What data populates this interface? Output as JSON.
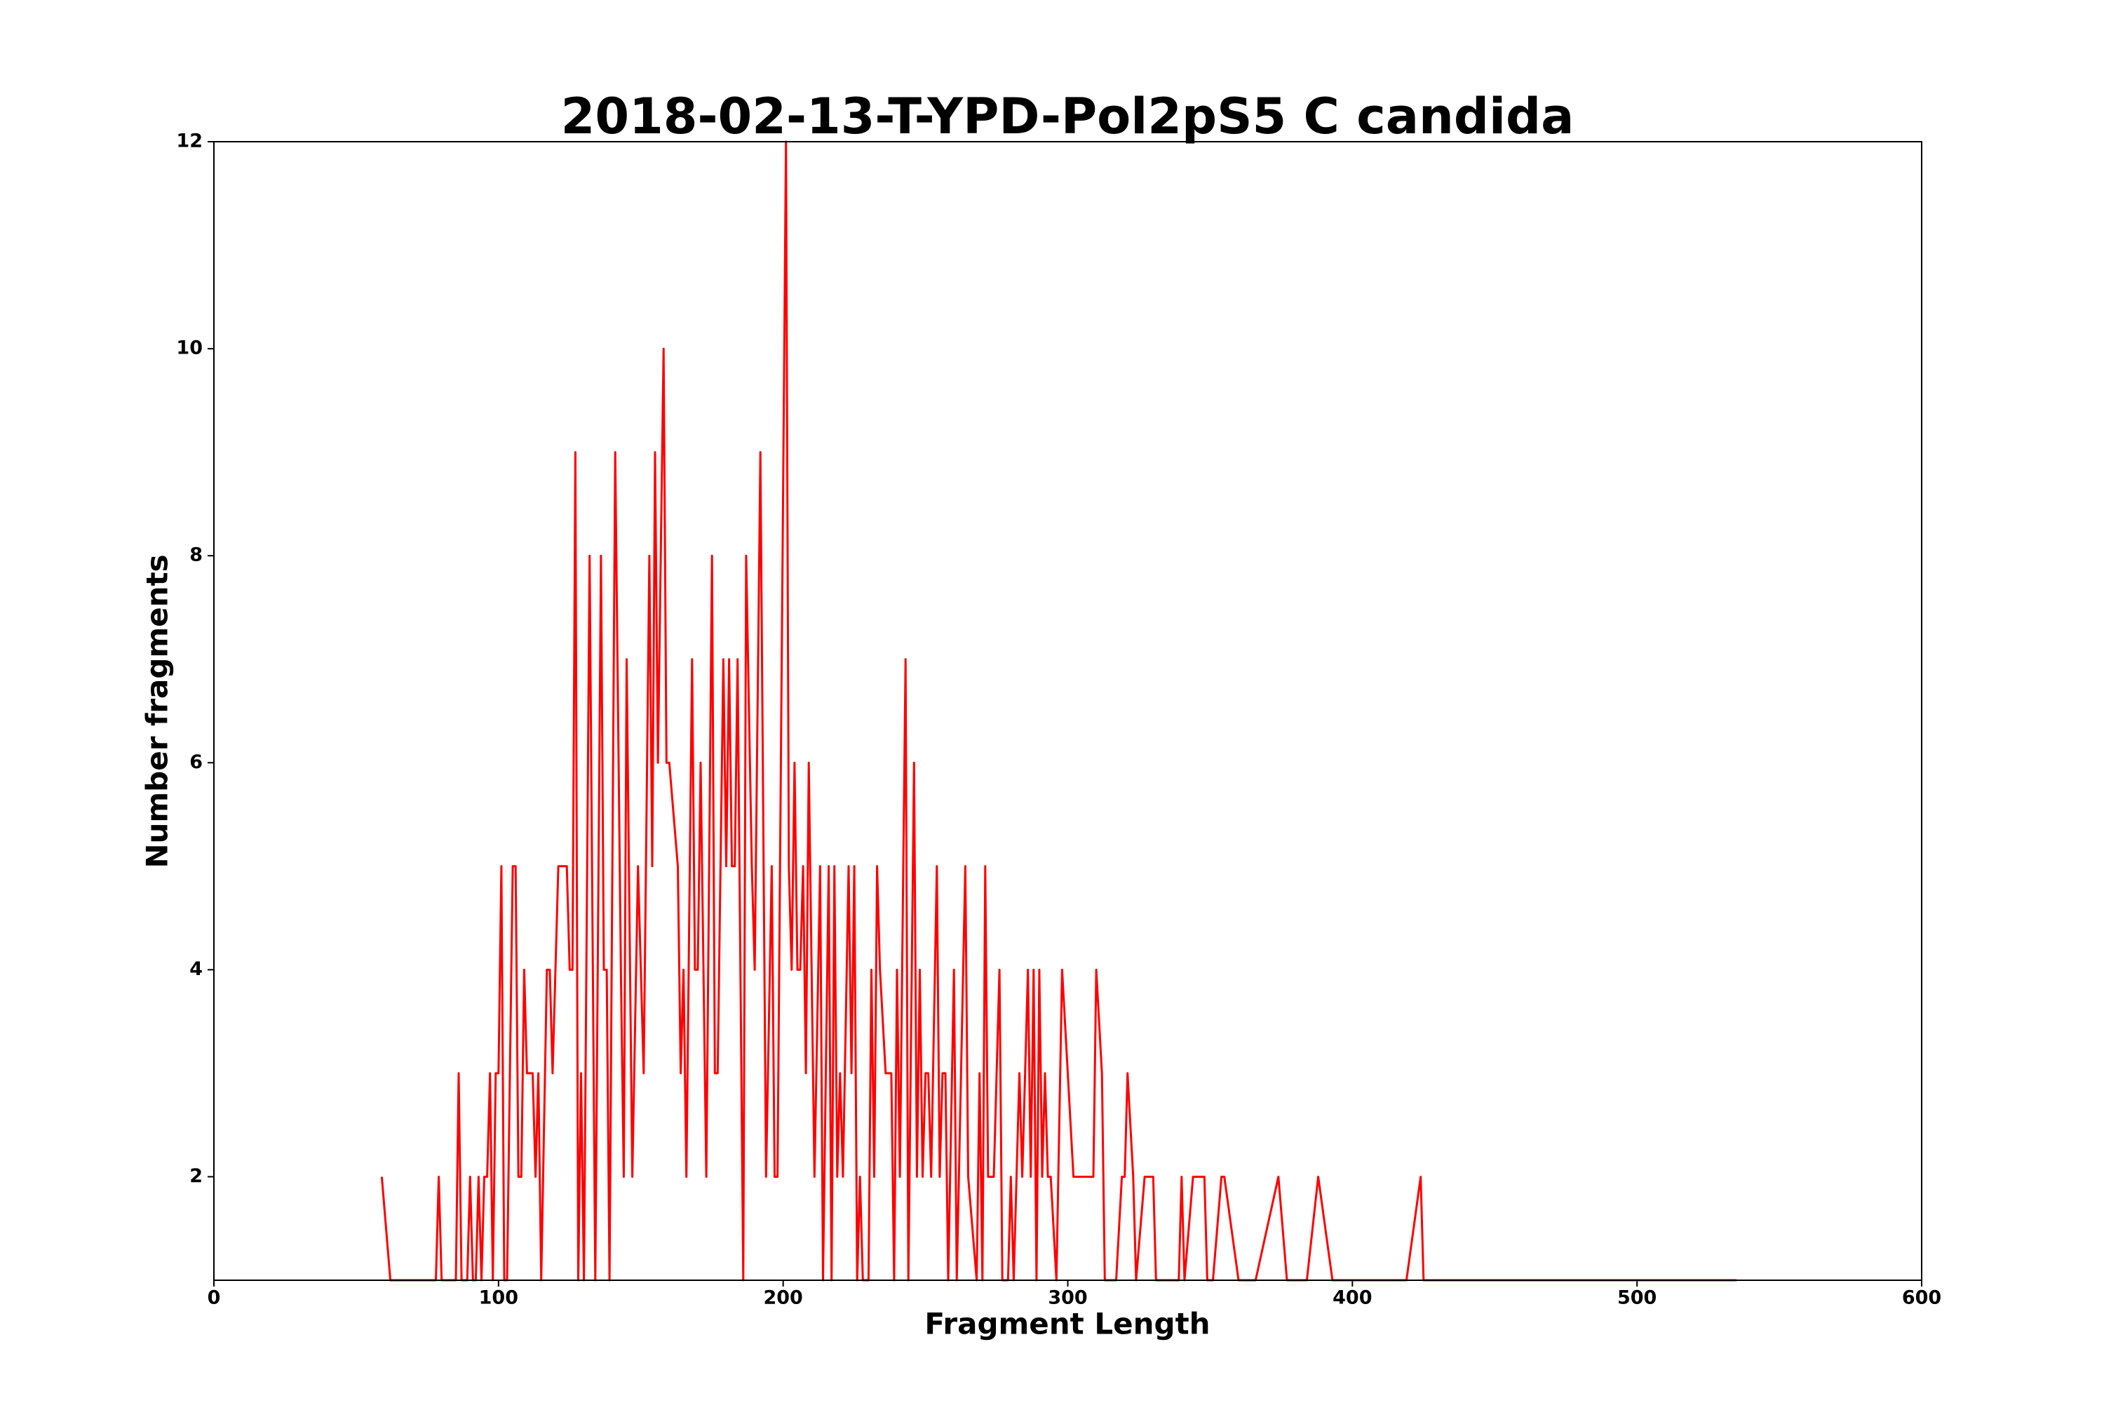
{
  "chart_data": {
    "type": "line",
    "title": "2018-02-13-T-YPD-Pol2pS5 C candida",
    "x_label": "Fragment Length",
    "y_label": "Number fragments",
    "x": [
      59,
      62,
      78,
      79,
      80,
      85,
      86,
      87,
      89,
      90,
      91,
      92,
      93,
      94,
      95,
      96,
      97,
      98,
      99,
      100,
      101,
      102,
      103,
      105,
      106,
      107,
      108,
      109,
      110,
      112,
      113,
      114,
      115,
      117,
      118,
      119,
      121,
      124,
      125,
      126,
      127,
      128,
      129,
      130,
      132,
      134,
      136,
      137,
      138,
      139,
      141,
      143,
      144,
      145,
      147,
      149,
      151,
      153,
      154,
      155,
      156,
      158,
      159,
      160,
      163,
      164,
      165,
      166,
      168,
      169,
      170,
      171,
      173,
      175,
      176,
      177,
      179,
      180,
      181,
      182,
      183,
      184,
      186,
      187,
      189,
      190,
      192,
      194,
      196,
      197,
      198,
      201,
      202,
      203,
      204,
      205,
      206,
      207,
      208,
      209,
      211,
      213,
      214,
      215,
      216,
      217,
      218,
      219,
      220,
      221,
      223,
      224,
      225,
      226,
      227,
      228,
      230,
      231,
      232,
      233,
      234,
      236,
      238,
      239,
      240,
      241,
      243,
      244,
      246,
      247,
      248,
      249,
      250,
      251,
      252,
      254,
      255,
      256,
      257,
      258,
      260,
      261,
      264,
      265,
      268,
      269,
      270,
      271,
      272,
      274,
      276,
      277,
      279,
      280,
      281,
      283,
      284,
      286,
      287,
      288,
      289,
      290,
      291,
      292,
      293,
      294,
      296,
      298,
      302,
      309,
      310,
      312,
      313,
      317,
      319,
      320,
      321,
      323,
      324,
      327,
      330,
      331,
      339,
      340,
      341,
      344,
      348,
      349,
      351,
      354,
      355,
      360,
      366,
      374,
      377,
      384,
      388,
      393,
      419,
      424,
      425,
      535
    ],
    "series": [
      {
        "color": "#ff0000",
        "values": [
          2,
          1,
          1,
          2,
          1,
          1,
          3,
          1,
          1,
          2,
          1,
          1,
          2,
          1,
          2,
          2,
          3,
          1,
          3,
          3,
          5,
          1,
          1,
          5,
          5,
          2,
          2,
          4,
          3,
          3,
          2,
          3,
          1,
          4,
          4,
          3,
          5,
          5,
          4,
          4,
          9,
          1,
          3,
          1,
          8,
          1,
          8,
          4,
          4,
          1,
          9,
          4,
          2,
          7,
          2,
          5,
          3,
          8,
          5,
          9,
          6,
          10,
          6,
          6,
          5,
          3,
          4,
          2,
          7,
          4,
          4,
          6,
          2,
          8,
          3,
          3,
          7,
          5,
          7,
          5,
          5,
          7,
          1,
          8,
          5,
          4,
          9,
          2,
          5,
          2,
          2,
          12,
          5,
          4,
          6,
          4,
          4,
          5,
          3,
          6,
          2,
          5,
          1,
          3,
          5,
          1,
          5,
          2,
          3,
          2,
          5,
          3,
          5,
          1,
          2,
          1,
          1,
          4,
          2,
          5,
          4,
          3,
          3,
          1,
          4,
          2,
          7,
          1,
          6,
          2,
          4,
          2,
          3,
          3,
          2,
          5,
          2,
          3,
          3,
          1,
          4,
          1,
          5,
          2,
          1,
          3,
          1,
          5,
          2,
          2,
          4,
          1,
          1,
          2,
          1,
          3,
          2,
          4,
          2,
          4,
          1,
          4,
          2,
          3,
          2,
          2,
          1,
          4,
          2,
          2,
          4,
          3,
          1,
          1,
          2,
          2,
          3,
          2,
          1,
          2,
          2,
          1,
          1,
          2,
          1,
          2,
          2,
          1,
          1,
          2,
          2,
          1,
          1,
          2,
          1,
          1,
          2,
          1,
          1,
          2,
          1,
          1
        ]
      }
    ],
    "xlim": [
      0,
      600
    ],
    "ylim": [
      1,
      12
    ],
    "xticks": [
      0,
      100,
      200,
      300,
      400,
      500,
      600
    ],
    "yticks": [
      2,
      4,
      6,
      8,
      10,
      12
    ],
    "grid": false
  }
}
